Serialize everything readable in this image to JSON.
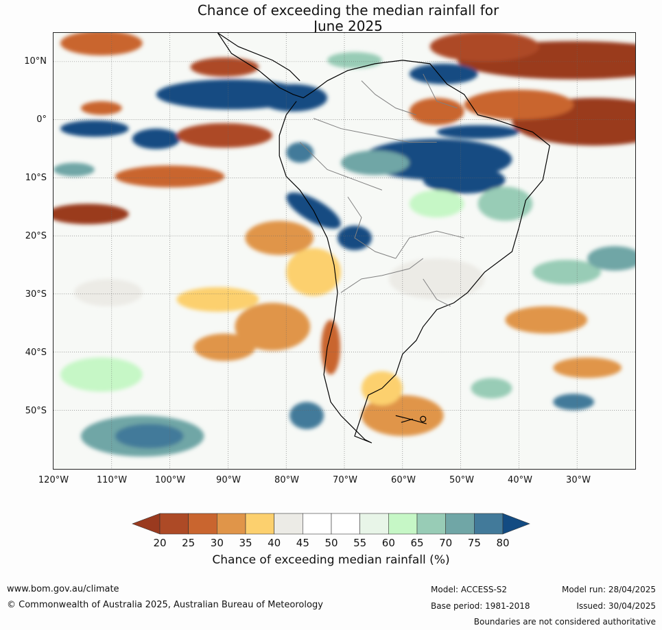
{
  "title_line1": "Chance of exceeding the median rainfall for",
  "title_line2": "June 2025",
  "lat_labels": [
    "10°N",
    "0°",
    "10°S",
    "20°S",
    "30°S",
    "40°S",
    "50°S"
  ],
  "lon_labels": [
    "120°W",
    "110°W",
    "100°W",
    "90°W",
    "80°W",
    "70°W",
    "60°W",
    "50°W",
    "40°W",
    "30°W"
  ],
  "colorbar": {
    "ticks": [
      "20",
      "25",
      "30",
      "35",
      "40",
      "45",
      "50",
      "55",
      "60",
      "65",
      "70",
      "75",
      "80"
    ],
    "colors": [
      "#9a3a1f",
      "#ad4a26",
      "#c9652f",
      "#e09549",
      "#fcd06e",
      "#ecebe6",
      "#ffffff",
      "#ffffff",
      "#e8f5e8",
      "#c6f7c6",
      "#98ccb6",
      "#70a6a6",
      "#427a9a",
      "#134b82"
    ],
    "title": "Chance of exceeding median rainfall (%)"
  },
  "footer": {
    "website": "www.bom.gov.au/climate",
    "copyright": "© Commonwealth of Australia 2025, Australian Bureau of Meteorology",
    "model": "Model: ACCESS-S2",
    "base_period": "Base period: 1981-2018",
    "model_run": "Model run: 28/04/2025",
    "issued": "Issued: 30/04/2025",
    "disclaimer": "Boundaries are not considered authoritative"
  }
}
